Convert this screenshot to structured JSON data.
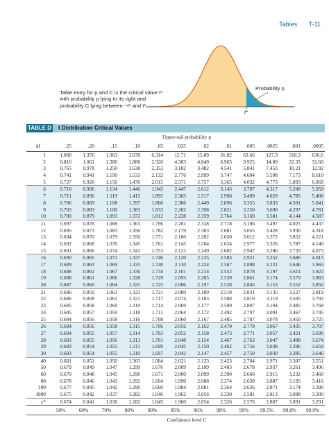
{
  "page_header": {
    "section": "Tables",
    "page": "T-11"
  },
  "figure": {
    "caption": "Table entry for p and C is the critical value t* with probability p lying to its right and probability C lying between −t* and t*.",
    "probability_label": "Probability p",
    "critical_label": "t*",
    "colors": {
      "curve_fill": "#fcd89a",
      "curve_stroke": "#d96a24",
      "tail_fill": "#2a9fc4"
    }
  },
  "table": {
    "label": "TABLE D",
    "title": "t Distribution Critical Values",
    "upper_tail_label": "Upper-tail probability p",
    "df_label": "df",
    "columns": [
      ".25",
      ".20",
      ".15",
      ".10",
      ".05",
      ".025",
      ".02",
      ".01",
      ".005",
      ".0025",
      ".001",
      ".0005"
    ],
    "rows": [
      {
        "df": "1",
        "values": [
          "1.000",
          "1.376",
          "1.963",
          "3.078",
          "6.314",
          "12.71",
          "15.89",
          "31.82",
          "63.66",
          "127.3",
          "318.3",
          "636.6"
        ]
      },
      {
        "df": "2",
        "values": [
          "0.816",
          "1.061",
          "1.386",
          "1.886",
          "2.920",
          "4.303",
          "4.849",
          "6.965",
          "9.925",
          "14.09",
          "22.33",
          "31.60"
        ]
      },
      {
        "df": "3",
        "values": [
          "0.765",
          "0.978",
          "1.250",
          "1.638",
          "2.353",
          "3.182",
          "3.482",
          "4.541",
          "5.841",
          "7.453",
          "10.21",
          "12.92"
        ]
      },
      {
        "df": "4",
        "values": [
          "0.741",
          "0.941",
          "1.190",
          "1.533",
          "2.132",
          "2.776",
          "2.999",
          "3.747",
          "4.604",
          "5.598",
          "7.173",
          "8.610"
        ]
      },
      {
        "df": "5",
        "values": [
          "0.727",
          "0.920",
          "1.156",
          "1.476",
          "2.015",
          "2.571",
          "2.757",
          "3.365",
          "4.032",
          "4.773",
          "5.893",
          "6.869"
        ]
      },
      {
        "df": "6",
        "values": [
          "0.718",
          "0.906",
          "1.134",
          "1.440",
          "1.943",
          "2.447",
          "2.612",
          "3.143",
          "3.707",
          "4.317",
          "5.208",
          "5.959"
        ]
      },
      {
        "df": "7",
        "values": [
          "0.711",
          "0.896",
          "1.119",
          "1.415",
          "1.895",
          "2.365",
          "2.517",
          "2.998",
          "3.499",
          "4.029",
          "4.785",
          "5.408"
        ]
      },
      {
        "df": "8",
        "values": [
          "0.706",
          "0.889",
          "1.108",
          "1.397",
          "1.860",
          "2.306",
          "2.449",
          "2.896",
          "3.355",
          "3.833",
          "4.501",
          "5.041"
        ]
      },
      {
        "df": "9",
        "values": [
          "0.703",
          "0.883",
          "1.100",
          "1.383",
          "1.833",
          "2.262",
          "2.398",
          "2.821",
          "3.250",
          "3.690",
          "4.297",
          "4.781"
        ]
      },
      {
        "df": "10",
        "values": [
          "0.700",
          "0.879",
          "1.093",
          "1.372",
          "1.812",
          "2.228",
          "2.359",
          "2.764",
          "3.169",
          "3.581",
          "4.144",
          "4.587"
        ]
      },
      {
        "df": "11",
        "values": [
          "0.697",
          "0.876",
          "1.088",
          "1.363",
          "1.796",
          "2.201",
          "2.328",
          "2.718",
          "3.106",
          "3.497",
          "4.025",
          "4.437"
        ]
      },
      {
        "df": "12",
        "values": [
          "0.695",
          "0.873",
          "1.083",
          "1.356",
          "1.782",
          "2.179",
          "2.303",
          "2.681",
          "3.055",
          "3.428",
          "3.930",
          "4.318"
        ]
      },
      {
        "df": "13",
        "values": [
          "0.694",
          "0.870",
          "1.079",
          "1.350",
          "1.771",
          "2.160",
          "2.282",
          "2.650",
          "3.012",
          "3.372",
          "3.852",
          "4.221"
        ]
      },
      {
        "df": "14",
        "values": [
          "0.692",
          "0.868",
          "1.076",
          "1.345",
          "1.761",
          "2.145",
          "2.264",
          "2.624",
          "2.977",
          "3.326",
          "3.787",
          "4.140"
        ]
      },
      {
        "df": "15",
        "values": [
          "0.691",
          "0.866",
          "1.074",
          "1.341",
          "1.753",
          "2.131",
          "2.249",
          "2.602",
          "2.947",
          "3.286",
          "3.733",
          "4.073"
        ]
      },
      {
        "df": "16",
        "values": [
          "0.690",
          "0.865",
          "1.071",
          "1.337",
          "1.746",
          "2.120",
          "2.235",
          "2.583",
          "2.921",
          "3.252",
          "3.686",
          "4.015"
        ]
      },
      {
        "df": "17",
        "values": [
          "0.689",
          "0.863",
          "1.069",
          "1.333",
          "1.740",
          "2.110",
          "2.224",
          "2.567",
          "2.898",
          "3.222",
          "3.646",
          "3.965"
        ]
      },
      {
        "df": "18",
        "values": [
          "0.688",
          "0.862",
          "1.067",
          "1.330",
          "1.734",
          "2.101",
          "2.214",
          "2.552",
          "2.878",
          "3.197",
          "3.611",
          "3.922"
        ]
      },
      {
        "df": "19",
        "values": [
          "0.688",
          "0.861",
          "1.066",
          "1.328",
          "1.729",
          "2.093",
          "2.205",
          "2.539",
          "2.861",
          "3.174",
          "3.579",
          "3.883"
        ]
      },
      {
        "df": "20",
        "values": [
          "0.687",
          "0.860",
          "1.064",
          "1.325",
          "1.725",
          "2.086",
          "2.197",
          "2.528",
          "2.845",
          "3.153",
          "3.552",
          "3.850"
        ]
      },
      {
        "df": "21",
        "values": [
          "0.686",
          "0.859",
          "1.063",
          "1.323",
          "1.721",
          "2.080",
          "2.189",
          "2.518",
          "2.831",
          "3.135",
          "3.527",
          "3.819"
        ]
      },
      {
        "df": "22",
        "values": [
          "0.686",
          "0.858",
          "1.061",
          "1.321",
          "1.717",
          "2.074",
          "2.183",
          "2.508",
          "2.819",
          "3.119",
          "3.505",
          "3.792"
        ]
      },
      {
        "df": "23",
        "values": [
          "0.685",
          "0.858",
          "1.060",
          "1.319",
          "1.714",
          "2.069",
          "2.177",
          "2.500",
          "2.807",
          "3.104",
          "3.485",
          "3.768"
        ]
      },
      {
        "df": "24",
        "values": [
          "0.685",
          "0.857",
          "1.059",
          "1.318",
          "1.711",
          "2.064",
          "2.172",
          "2.492",
          "2.797",
          "3.091",
          "3.467",
          "3.745"
        ]
      },
      {
        "df": "25",
        "values": [
          "0.684",
          "0.856",
          "1.058",
          "1.316",
          "1.708",
          "2.060",
          "2.167",
          "2.485",
          "2.787",
          "3.078",
          "3.450",
          "3.725"
        ]
      },
      {
        "df": "26",
        "values": [
          "0.684",
          "0.856",
          "1.058",
          "1.315",
          "1.706",
          "2.056",
          "2.162",
          "2.479",
          "2.779",
          "3.067",
          "3.435",
          "3.707"
        ]
      },
      {
        "df": "27",
        "values": [
          "0.684",
          "0.855",
          "1.057",
          "1.314",
          "1.703",
          "2.052",
          "2.158",
          "2.473",
          "2.771",
          "3.057",
          "3.421",
          "3.690"
        ]
      },
      {
        "df": "28",
        "values": [
          "0.683",
          "0.855",
          "1.056",
          "1.313",
          "1.701",
          "2.048",
          "2.154",
          "2.467",
          "2.763",
          "3.047",
          "3.408",
          "3.674"
        ]
      },
      {
        "df": "29",
        "values": [
          "0.683",
          "0.854",
          "1.055",
          "1.311",
          "1.699",
          "2.045",
          "2.150",
          "2.462",
          "2.756",
          "3.038",
          "3.396",
          "3.659"
        ]
      },
      {
        "df": "30",
        "values": [
          "0.683",
          "0.854",
          "1.055",
          "1.310",
          "1.697",
          "2.042",
          "2.147",
          "2.457",
          "2.750",
          "3.030",
          "3.385",
          "3.646"
        ]
      },
      {
        "df": "40",
        "values": [
          "0.681",
          "0.851",
          "1.050",
          "1.303",
          "1.684",
          "2.021",
          "2.123",
          "2.423",
          "2.704",
          "2.971",
          "3.307",
          "3.551"
        ]
      },
      {
        "df": "50",
        "values": [
          "0.679",
          "0.849",
          "1.047",
          "1.299",
          "1.676",
          "2.009",
          "2.109",
          "2.403",
          "2.678",
          "2.937",
          "3.261",
          "3.496"
        ]
      },
      {
        "df": "60",
        "values": [
          "0.679",
          "0.848",
          "1.045",
          "1.296",
          "1.671",
          "2.000",
          "2.099",
          "2.390",
          "2.660",
          "2.915",
          "3.232",
          "3.460"
        ]
      },
      {
        "df": "80",
        "values": [
          "0.678",
          "0.846",
          "1.043",
          "1.292",
          "1.664",
          "1.990",
          "2.088",
          "2.374",
          "2.639",
          "2.887",
          "3.195",
          "3.416"
        ]
      },
      {
        "df": "100",
        "values": [
          "0.677",
          "0.845",
          "1.042",
          "1.290",
          "1.660",
          "1.984",
          "2.081",
          "2.364",
          "2.626",
          "2.871",
          "3.174",
          "3.390"
        ]
      },
      {
        "df": "1000",
        "values": [
          "0.675",
          "0.842",
          "1.037",
          "1.282",
          "1.646",
          "1.962",
          "2.056",
          "2.330",
          "2.581",
          "2.813",
          "3.098",
          "3.300"
        ]
      },
      {
        "df": "z*",
        "values": [
          "0.674",
          "0.841",
          "1.036",
          "1.282",
          "1.645",
          "1.960",
          "2.054",
          "2.326",
          "2.576",
          "2.807",
          "3.091",
          "3.291"
        ]
      }
    ],
    "confidence_levels": [
      "50%",
      "60%",
      "70%",
      "80%",
      "90%",
      "95%",
      "96%",
      "98%",
      "99%",
      "99.5%",
      "99.8%",
      "99.9%"
    ],
    "confidence_label": "Confidence level C"
  }
}
